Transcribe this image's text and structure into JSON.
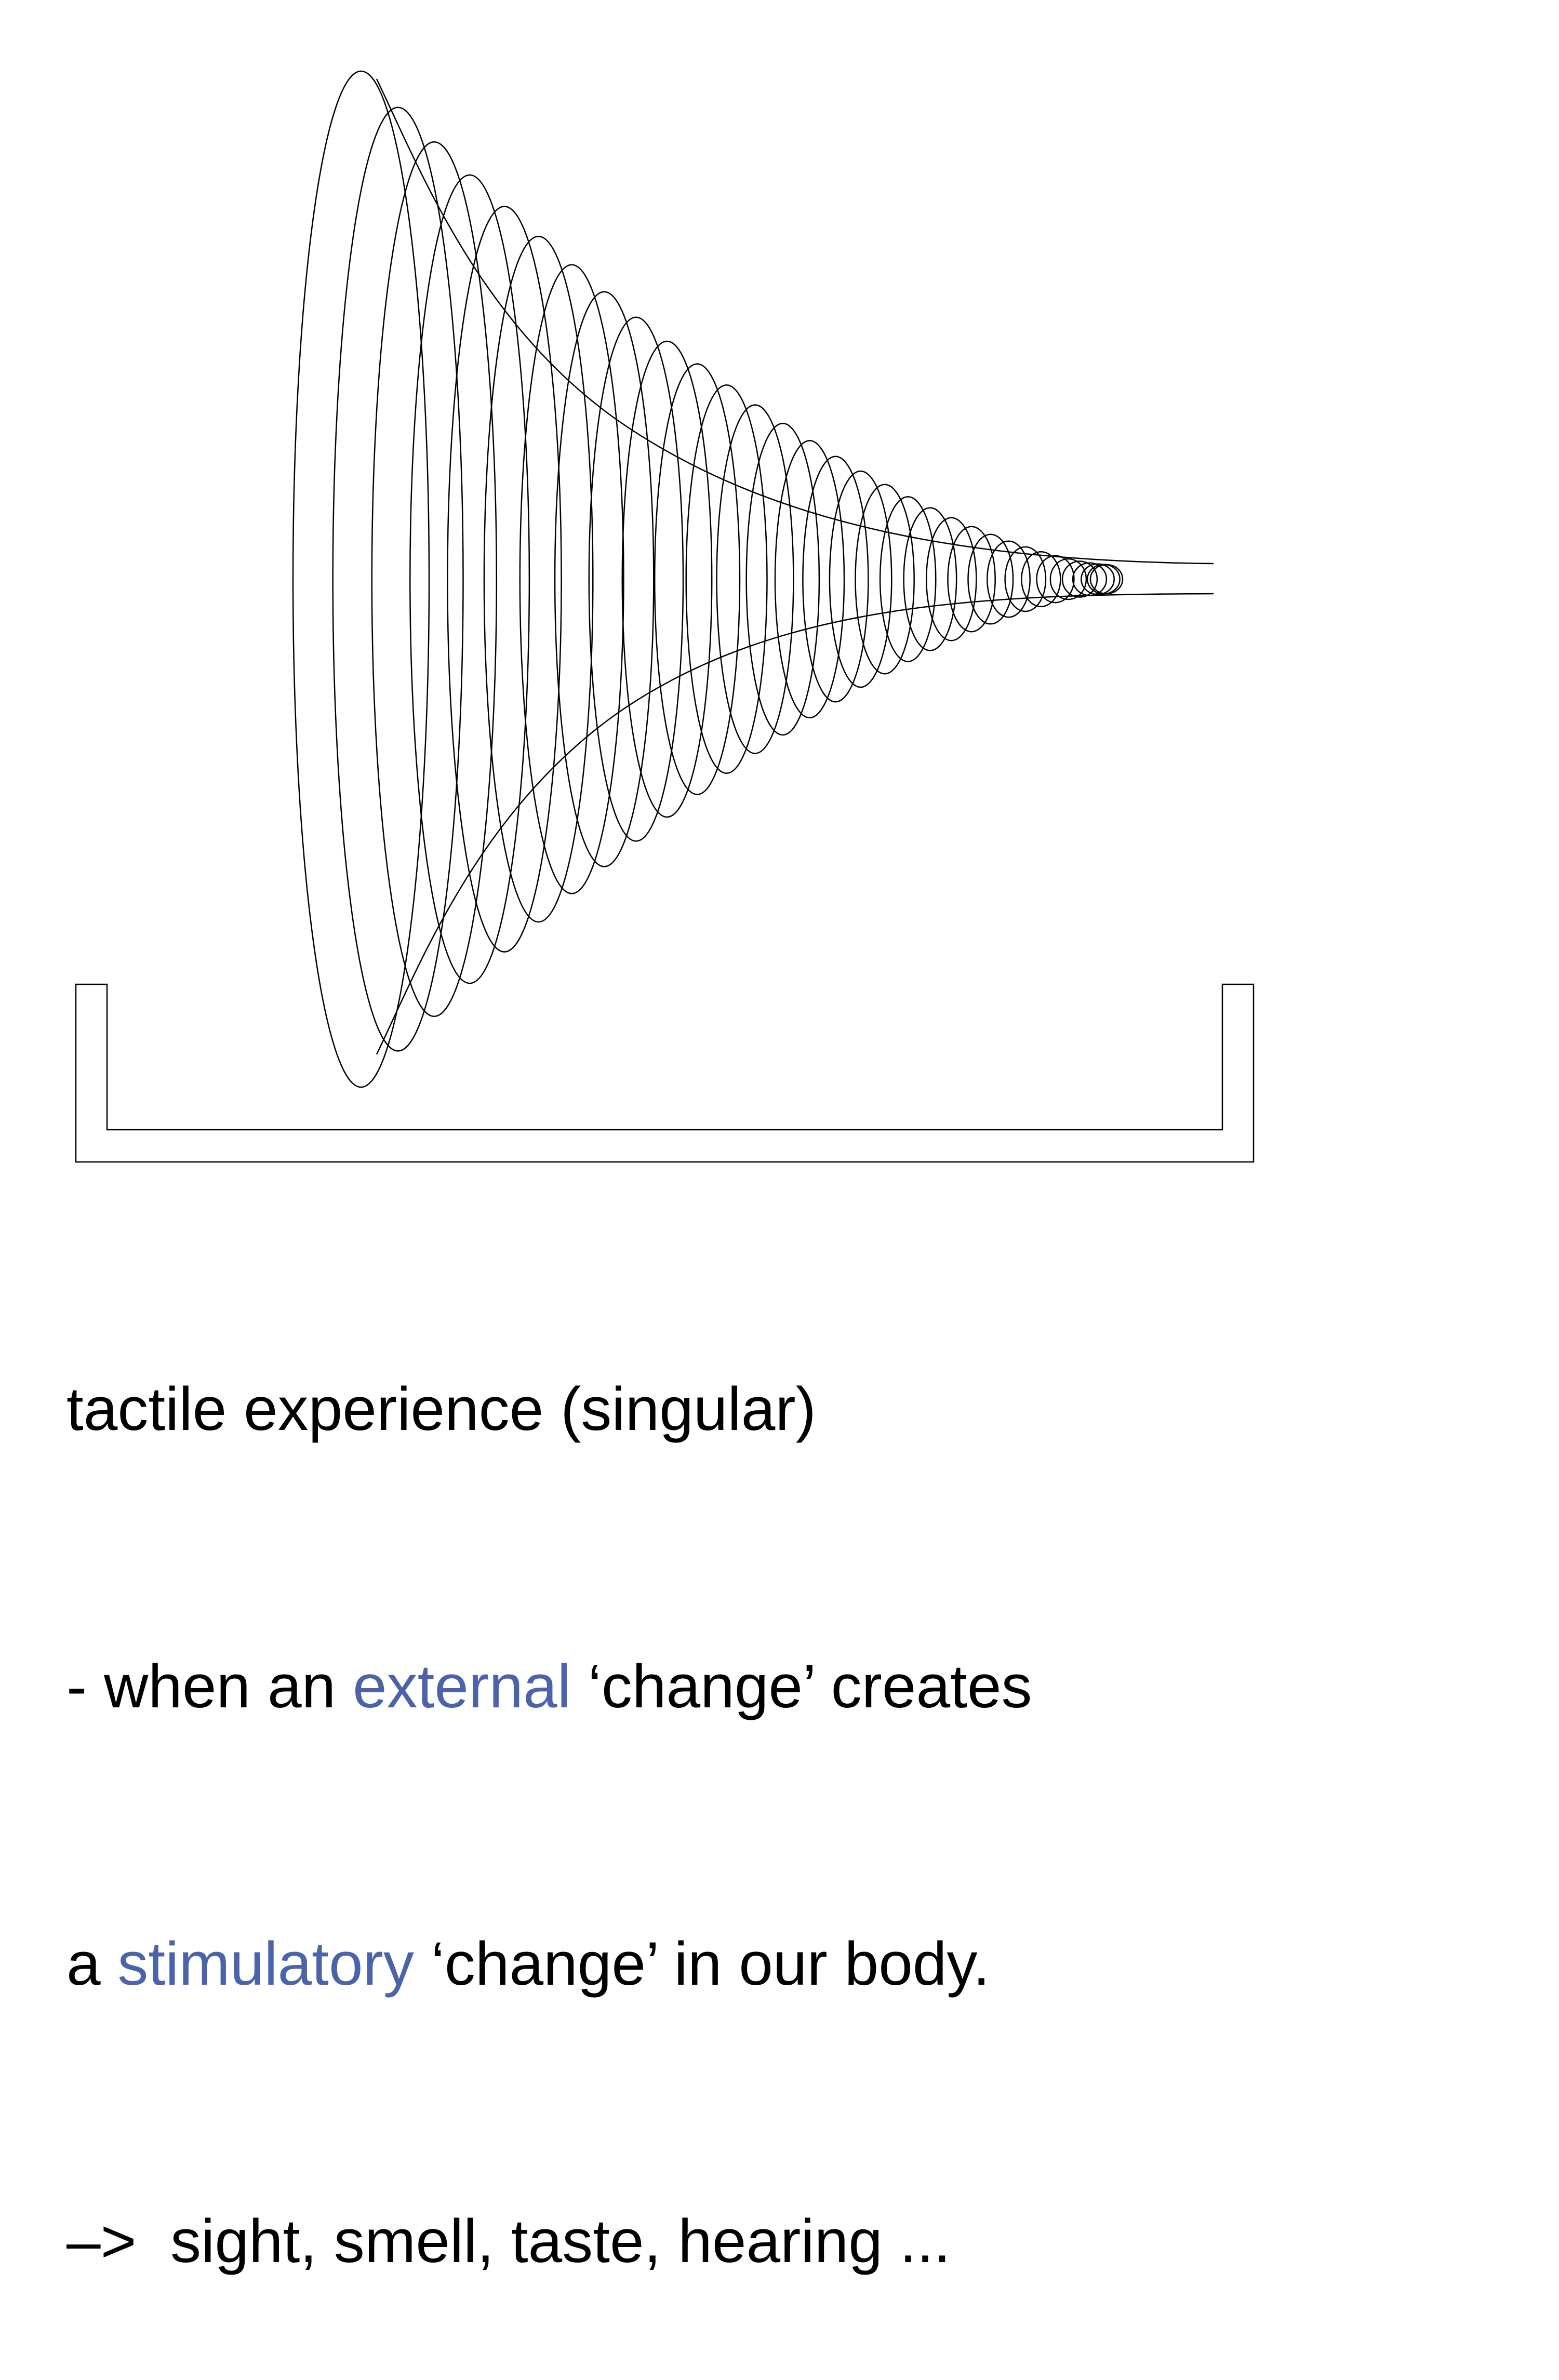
{
  "colors": {
    "text": "#000000",
    "accent": "#4a63aa",
    "stroke": "#000000",
    "background": "#ffffff"
  },
  "figure": {
    "shape": "funnel of ellipses tapering into a narrow tube, resting above a U-shaped tray",
    "ellipse_count": 33
  },
  "caption": {
    "line1": "tactile experience (singular)",
    "line2": {
      "prefix": "- when an ",
      "highlight": "external",
      "suffix": " ‘change’ creates"
    },
    "line3": {
      "prefix": "a ",
      "highlight": "stimulatory",
      "suffix": " ‘change’ in our body."
    },
    "line4": "–>  sight, smell, taste, hearing ..."
  }
}
